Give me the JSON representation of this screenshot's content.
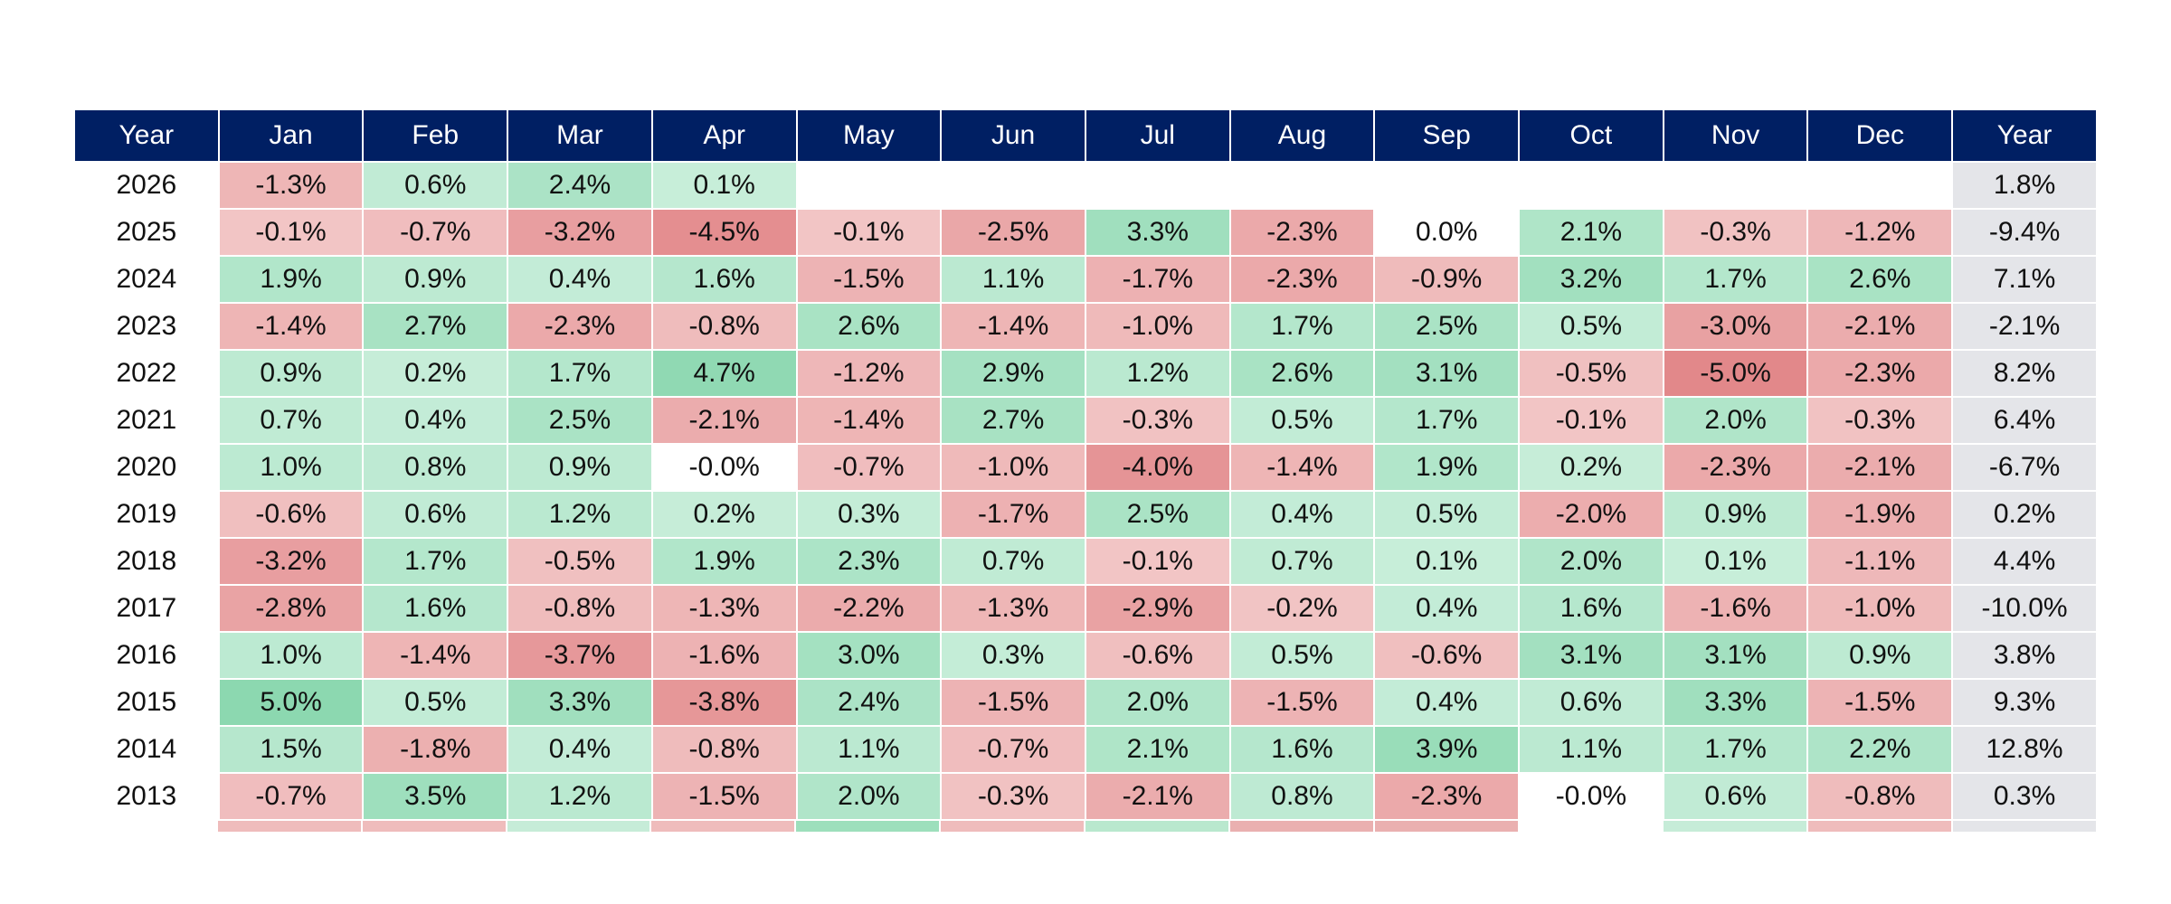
{
  "table": {
    "columns": [
      "Year",
      "Jan",
      "Feb",
      "Mar",
      "Apr",
      "May",
      "Jun",
      "Jul",
      "Aug",
      "Sep",
      "Oct",
      "Nov",
      "Dec",
      "Year"
    ],
    "rows": [
      {
        "year": "2026",
        "months": [
          "-1.3%",
          "0.6%",
          "2.4%",
          "0.1%",
          null,
          null,
          null,
          null,
          null,
          null,
          null,
          null
        ],
        "total": "1.8%"
      },
      {
        "year": "2025",
        "months": [
          "-0.1%",
          "-0.7%",
          "-3.2%",
          "-4.5%",
          "-0.1%",
          "-2.5%",
          "3.3%",
          "-2.3%",
          "0.0%",
          "2.1%",
          "-0.3%",
          "-1.2%"
        ],
        "total": "-9.4%"
      },
      {
        "year": "2024",
        "months": [
          "1.9%",
          "0.9%",
          "0.4%",
          "1.6%",
          "-1.5%",
          "1.1%",
          "-1.7%",
          "-2.3%",
          "-0.9%",
          "3.2%",
          "1.7%",
          "2.6%"
        ],
        "total": "7.1%"
      },
      {
        "year": "2023",
        "months": [
          "-1.4%",
          "2.7%",
          "-2.3%",
          "-0.8%",
          "2.6%",
          "-1.4%",
          "-1.0%",
          "1.7%",
          "2.5%",
          "0.5%",
          "-3.0%",
          "-2.1%"
        ],
        "total": "-2.1%"
      },
      {
        "year": "2022",
        "months": [
          "0.9%",
          "0.2%",
          "1.7%",
          "4.7%",
          "-1.2%",
          "2.9%",
          "1.2%",
          "2.6%",
          "3.1%",
          "-0.5%",
          "-5.0%",
          "-2.3%"
        ],
        "total": "8.2%"
      },
      {
        "year": "2021",
        "months": [
          "0.7%",
          "0.4%",
          "2.5%",
          "-2.1%",
          "-1.4%",
          "2.7%",
          "-0.3%",
          "0.5%",
          "1.7%",
          "-0.1%",
          "2.0%",
          "-0.3%"
        ],
        "total": "6.4%"
      },
      {
        "year": "2020",
        "months": [
          "1.0%",
          "0.8%",
          "0.9%",
          "-0.0%",
          "-0.7%",
          "-1.0%",
          "-4.0%",
          "-1.4%",
          "1.9%",
          "0.2%",
          "-2.3%",
          "-2.1%"
        ],
        "total": "-6.7%"
      },
      {
        "year": "2019",
        "months": [
          "-0.6%",
          "0.6%",
          "1.2%",
          "0.2%",
          "0.3%",
          "-1.7%",
          "2.5%",
          "0.4%",
          "0.5%",
          "-2.0%",
          "0.9%",
          "-1.9%"
        ],
        "total": "0.2%"
      },
      {
        "year": "2018",
        "months": [
          "-3.2%",
          "1.7%",
          "-0.5%",
          "1.9%",
          "2.3%",
          "0.7%",
          "-0.1%",
          "0.7%",
          "0.1%",
          "2.0%",
          "0.1%",
          "-1.1%"
        ],
        "total": "4.4%"
      },
      {
        "year": "2017",
        "months": [
          "-2.8%",
          "1.6%",
          "-0.8%",
          "-1.3%",
          "-2.2%",
          "-1.3%",
          "-2.9%",
          "-0.2%",
          "0.4%",
          "1.6%",
          "-1.6%",
          "-1.0%"
        ],
        "total": "-10.0%"
      },
      {
        "year": "2016",
        "months": [
          "1.0%",
          "-1.4%",
          "-3.7%",
          "-1.6%",
          "3.0%",
          "0.3%",
          "-0.6%",
          "0.5%",
          "-0.6%",
          "3.1%",
          "3.1%",
          "0.9%"
        ],
        "total": "3.8%"
      },
      {
        "year": "2015",
        "months": [
          "5.0%",
          "0.5%",
          "3.3%",
          "-3.8%",
          "2.4%",
          "-1.5%",
          "2.0%",
          "-1.5%",
          "0.4%",
          "0.6%",
          "3.3%",
          "-1.5%"
        ],
        "total": "9.3%"
      },
      {
        "year": "2014",
        "months": [
          "1.5%",
          "-1.8%",
          "0.4%",
          "-0.8%",
          "1.1%",
          "-0.7%",
          "2.1%",
          "1.6%",
          "3.9%",
          "1.1%",
          "1.7%",
          "2.2%"
        ],
        "total": "12.8%"
      },
      {
        "year": "2013",
        "months": [
          "-0.7%",
          "3.5%",
          "1.2%",
          "-1.5%",
          "2.0%",
          "-0.3%",
          "-2.1%",
          "0.8%",
          "-2.3%",
          "-0.0%",
          "0.6%",
          "-0.8%"
        ],
        "total": "0.3%"
      }
    ]
  }
}
